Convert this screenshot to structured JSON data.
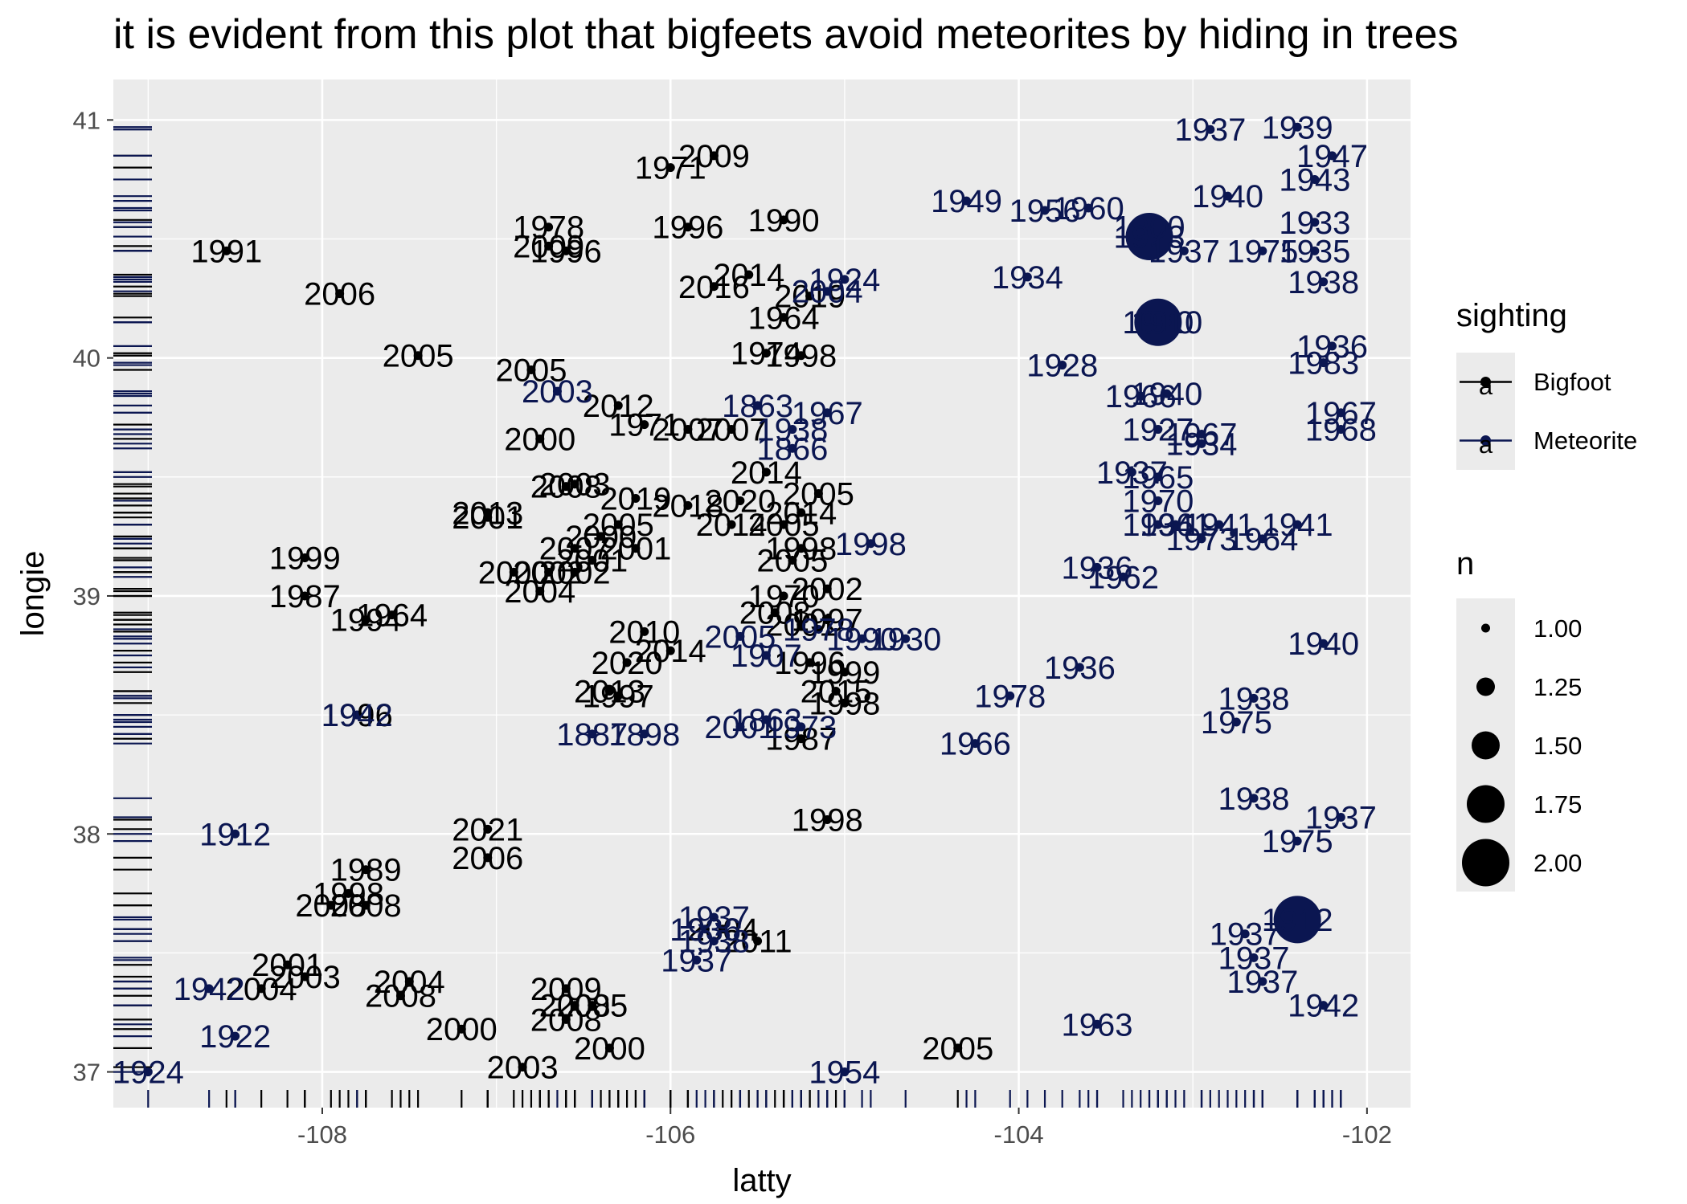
{
  "chart_data": {
    "type": "scatter",
    "title": "it is evident from this plot that bigfeets avoid meteorites by hiding in trees",
    "xlabel": "latty",
    "ylabel": "longie",
    "xlim": [
      -109.2,
      -101.75
    ],
    "ylim": [
      36.85,
      41.17
    ],
    "x_ticks": [
      -108,
      -106,
      -104,
      -102
    ],
    "x_tick_labels": [
      "-108",
      "-106",
      "-104",
      "-102"
    ],
    "y_ticks": [
      37,
      38,
      39,
      40,
      41
    ],
    "y_tick_labels": [
      "37",
      "38",
      "39",
      "40",
      "41"
    ],
    "grid": true,
    "rug": true,
    "colors": {
      "Bigfoot": "#000000",
      "Meteorite": "#0b1651",
      "panel": "#ebebeb",
      "grid": "#ffffff"
    },
    "legend": {
      "position": "right",
      "sighting_title": "sighting",
      "sighting_items": [
        "Bigfoot",
        "Meteorite"
      ],
      "sighting_key_glyph": "a",
      "size_title": "n",
      "size_items": [
        "1.00",
        "1.25",
        "1.50",
        "1.75",
        "2.00"
      ]
    },
    "series": [
      {
        "name": "Bigfoot",
        "color": "#000000",
        "points": [
          [
            -108.55,
            40.45,
            "1991",
            1
          ],
          [
            -107.9,
            40.27,
            "2006",
            1
          ],
          [
            -107.45,
            40.01,
            "2005",
            1
          ],
          [
            -106.8,
            39.95,
            "2005",
            1
          ],
          [
            -106.7,
            40.55,
            "1978",
            1
          ],
          [
            -106.7,
            40.47,
            "2009",
            1
          ],
          [
            -106.6,
            40.45,
            "1996",
            1
          ],
          [
            -106.3,
            39.8,
            "2012",
            1
          ],
          [
            -106.15,
            39.72,
            "1971",
            1
          ],
          [
            -106.75,
            39.66,
            "2000",
            1
          ],
          [
            -106.55,
            39.47,
            "2003",
            1
          ],
          [
            -106.6,
            39.46,
            "2008",
            1
          ],
          [
            -107.05,
            39.35,
            "2013",
            1
          ],
          [
            -107.05,
            39.33,
            "2001",
            1
          ],
          [
            -106.2,
            39.41,
            "2019",
            1
          ],
          [
            -106.3,
            39.3,
            "2005",
            1
          ],
          [
            -106.4,
            39.25,
            "2000",
            1
          ],
          [
            -106.55,
            39.2,
            "2007",
            1
          ],
          [
            -106.45,
            39.15,
            "2001",
            1
          ],
          [
            -106.2,
            39.2,
            "2001",
            1
          ],
          [
            -106.9,
            39.1,
            "2000",
            1
          ],
          [
            -106.7,
            39.1,
            "2002",
            1
          ],
          [
            -106.55,
            39.1,
            "2002",
            1
          ],
          [
            -106.75,
            39.02,
            "2004",
            1
          ],
          [
            -108.1,
            39.16,
            "1999",
            1
          ],
          [
            -108.1,
            39.0,
            "1987",
            1
          ],
          [
            -107.75,
            38.9,
            "1994",
            1
          ],
          [
            -107.6,
            38.92,
            "1964",
            1
          ],
          [
            -107.8,
            38.5,
            "1996",
            1
          ],
          [
            -107.05,
            37.9,
            "2006",
            1
          ],
          [
            -107.05,
            38.02,
            "2021",
            1
          ],
          [
            -107.75,
            37.85,
            "1989",
            1
          ],
          [
            -107.85,
            37.75,
            "1998",
            1
          ],
          [
            -107.75,
            37.7,
            "2008",
            1
          ],
          [
            -107.95,
            37.7,
            "2008",
            1
          ],
          [
            -108.2,
            37.45,
            "2001",
            1
          ],
          [
            -108.1,
            37.4,
            "2003",
            1
          ],
          [
            -108.35,
            37.35,
            "2004",
            1
          ],
          [
            -107.5,
            37.38,
            "2004",
            1
          ],
          [
            -107.55,
            37.32,
            "2008",
            1
          ],
          [
            -107.2,
            37.18,
            "2000",
            1
          ],
          [
            -106.85,
            37.02,
            "2003",
            1
          ],
          [
            -106.6,
            37.35,
            "2009",
            1
          ],
          [
            -106.55,
            37.28,
            "2008",
            1
          ],
          [
            -106.45,
            37.28,
            "2005",
            1
          ],
          [
            -106.6,
            37.22,
            "2008",
            1
          ],
          [
            -106.35,
            37.1,
            "2000",
            1
          ],
          [
            -106.0,
            40.8,
            "1971",
            1
          ],
          [
            -105.75,
            40.85,
            "2009",
            1
          ],
          [
            -105.9,
            40.55,
            "1996",
            1
          ],
          [
            -105.35,
            40.58,
            "1990",
            1
          ],
          [
            -105.75,
            40.3,
            "2016",
            1
          ],
          [
            -105.55,
            40.35,
            "2014",
            1
          ],
          [
            -105.2,
            40.26,
            "2019",
            1
          ],
          [
            -105.35,
            40.17,
            "1964",
            1
          ],
          [
            -105.45,
            40.02,
            "1974",
            1
          ],
          [
            -105.25,
            40.01,
            "1998",
            1
          ],
          [
            -105.9,
            39.7,
            "2007",
            1
          ],
          [
            -105.65,
            39.7,
            "2007",
            1
          ],
          [
            -105.45,
            39.52,
            "2014",
            1
          ],
          [
            -105.15,
            39.43,
            "2005",
            1
          ],
          [
            -105.25,
            39.35,
            "2014",
            1
          ],
          [
            -105.35,
            39.3,
            "2005",
            1
          ],
          [
            -105.6,
            39.4,
            "2020",
            1
          ],
          [
            -105.9,
            39.38,
            "2018",
            1
          ],
          [
            -105.65,
            39.3,
            "2014",
            1
          ],
          [
            -105.25,
            39.2,
            "1998",
            1
          ],
          [
            -105.3,
            39.15,
            "2005",
            1
          ],
          [
            -105.1,
            39.03,
            "2002",
            1
          ],
          [
            -105.35,
            39.0,
            "1970",
            1
          ],
          [
            -105.4,
            38.93,
            "2008",
            1
          ],
          [
            -105.1,
            38.9,
            "1997",
            1
          ],
          [
            -105.25,
            38.88,
            "2001",
            1
          ],
          [
            -106.15,
            38.85,
            "2010",
            1
          ],
          [
            -106.0,
            38.77,
            "2014",
            1
          ],
          [
            -106.25,
            38.72,
            "2020",
            1
          ],
          [
            -106.35,
            38.6,
            "2013",
            1
          ],
          [
            -106.3,
            38.58,
            "1997",
            1
          ],
          [
            -105.2,
            38.72,
            "1996",
            1
          ],
          [
            -105.0,
            38.68,
            "1999",
            1
          ],
          [
            -105.05,
            38.6,
            "2015",
            1
          ],
          [
            -105.0,
            38.55,
            "1998",
            1
          ],
          [
            -105.25,
            38.4,
            "1987",
            1
          ],
          [
            -105.1,
            38.06,
            "1998",
            1
          ],
          [
            -105.7,
            37.6,
            "2004",
            1
          ],
          [
            -105.5,
            37.55,
            "2011",
            1
          ],
          [
            -104.35,
            37.1,
            "2005",
            1
          ]
        ]
      },
      {
        "name": "Meteorite",
        "color": "#0b1651",
        "points": [
          [
            -102.9,
            40.96,
            "1937",
            1
          ],
          [
            -102.4,
            40.97,
            "1939",
            1
          ],
          [
            -102.2,
            40.85,
            "1947",
            1
          ],
          [
            -102.3,
            40.75,
            "1943",
            1
          ],
          [
            -102.8,
            40.68,
            "1940",
            1
          ],
          [
            -104.3,
            40.66,
            "1949",
            1
          ],
          [
            -103.85,
            40.62,
            "1956",
            1
          ],
          [
            -103.6,
            40.63,
            "1960",
            1
          ],
          [
            -103.25,
            40.55,
            "1900",
            1
          ],
          [
            -103.25,
            40.51,
            "1973",
            2
          ],
          [
            -103.05,
            40.45,
            "1937",
            1
          ],
          [
            -102.6,
            40.45,
            "1975",
            1
          ],
          [
            -102.3,
            40.57,
            "1933",
            1
          ],
          [
            -102.3,
            40.45,
            "1935",
            1
          ],
          [
            -102.25,
            40.32,
            "1938",
            1
          ],
          [
            -103.95,
            40.34,
            "1934",
            1
          ],
          [
            -105.0,
            40.33,
            "1924",
            1
          ],
          [
            -105.1,
            40.28,
            "2004",
            1
          ],
          [
            -103.2,
            40.15,
            "1910",
            2
          ],
          [
            -103.15,
            40.15,
            "1910",
            1
          ],
          [
            -102.2,
            40.05,
            "1936",
            1
          ],
          [
            -102.25,
            39.98,
            "1983",
            1
          ],
          [
            -103.75,
            39.97,
            "1928",
            1
          ],
          [
            -103.15,
            39.85,
            "1940",
            1
          ],
          [
            -103.3,
            39.84,
            "1966",
            1
          ],
          [
            -103.2,
            39.7,
            "1927",
            1
          ],
          [
            -102.95,
            39.68,
            "1967",
            1
          ],
          [
            -102.95,
            39.64,
            "1934",
            1
          ],
          [
            -102.15,
            39.77,
            "1967",
            1
          ],
          [
            -102.15,
            39.7,
            "1968",
            1
          ],
          [
            -103.35,
            39.52,
            "1937",
            1
          ],
          [
            -103.2,
            39.5,
            "1965",
            1
          ],
          [
            -103.2,
            39.4,
            "1970",
            1
          ],
          [
            -103.1,
            39.3,
            "1941",
            1
          ],
          [
            -102.85,
            39.3,
            "1941",
            1
          ],
          [
            -102.4,
            39.3,
            "1941",
            1
          ],
          [
            -103.2,
            39.3,
            "1936",
            1
          ],
          [
            -102.95,
            39.24,
            "1973",
            1
          ],
          [
            -102.6,
            39.24,
            "1964",
            1
          ],
          [
            -103.55,
            39.12,
            "1936",
            1
          ],
          [
            -103.4,
            39.08,
            "1962",
            1
          ],
          [
            -104.85,
            39.22,
            "1998",
            1
          ],
          [
            -106.65,
            39.86,
            "2003",
            1
          ],
          [
            -105.5,
            39.8,
            "1863",
            1
          ],
          [
            -105.3,
            39.7,
            "1938",
            1
          ],
          [
            -105.1,
            39.77,
            "1967",
            1
          ],
          [
            -105.3,
            39.62,
            "1866",
            1
          ],
          [
            -105.6,
            38.83,
            "2005",
            1
          ],
          [
            -105.45,
            38.75,
            "1907",
            1
          ],
          [
            -105.15,
            38.86,
            "1978",
            1
          ],
          [
            -104.9,
            38.82,
            "1990",
            1
          ],
          [
            -104.65,
            38.82,
            "1930",
            1
          ],
          [
            -103.65,
            38.7,
            "1936",
            1
          ],
          [
            -104.05,
            38.58,
            "1978",
            1
          ],
          [
            -104.25,
            38.38,
            "1966",
            1
          ],
          [
            -102.75,
            38.47,
            "1975",
            1
          ],
          [
            -102.65,
            38.57,
            "1938",
            1
          ],
          [
            -102.25,
            38.8,
            "1940",
            1
          ],
          [
            -105.6,
            38.45,
            "2001",
            1
          ],
          [
            -105.45,
            38.48,
            "1863",
            1
          ],
          [
            -105.25,
            38.45,
            "1973",
            1
          ],
          [
            -106.45,
            38.42,
            "1887",
            1
          ],
          [
            -106.15,
            38.42,
            "1898",
            1
          ],
          [
            -102.65,
            38.15,
            "1938",
            1
          ],
          [
            -102.15,
            38.07,
            "1937",
            1
          ],
          [
            -102.4,
            37.97,
            "1975",
            1
          ],
          [
            -108.5,
            38.0,
            "1912",
            1
          ],
          [
            -107.8,
            38.5,
            "1942",
            1
          ],
          [
            -102.4,
            37.64,
            "1912",
            2
          ],
          [
            -102.7,
            37.58,
            "1937",
            1
          ],
          [
            -102.65,
            37.48,
            "1937",
            1
          ],
          [
            -102.6,
            37.38,
            "1937",
            1
          ],
          [
            -102.25,
            37.28,
            "1942",
            1
          ],
          [
            -103.55,
            37.2,
            "1963",
            1
          ],
          [
            -105.75,
            37.65,
            "1937",
            1
          ],
          [
            -105.8,
            37.6,
            "1936",
            1
          ],
          [
            -105.75,
            37.55,
            "1938",
            1
          ],
          [
            -105.85,
            37.47,
            "1937",
            1
          ],
          [
            -108.65,
            37.35,
            "1942",
            1
          ],
          [
            -108.5,
            37.15,
            "1922",
            1
          ],
          [
            -109.0,
            37.0,
            "1924",
            1
          ],
          [
            -105.0,
            37.0,
            "1954",
            1
          ]
        ]
      }
    ]
  }
}
